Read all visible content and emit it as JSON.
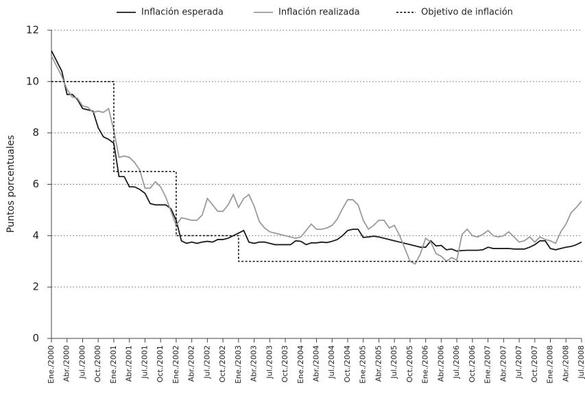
{
  "chart_data": {
    "type": "line",
    "ylabel": "Puntos porcentuales",
    "categories": [
      "Ene./2000",
      null,
      null,
      "Abr./2000",
      null,
      null,
      "Jul./2000",
      null,
      null,
      "Oct./2000",
      null,
      null,
      "Ene./2001",
      null,
      null,
      "Abr./2001",
      null,
      null,
      "Jul./2001",
      null,
      null,
      "Oct./2001",
      null,
      null,
      "Ene./2002",
      null,
      null,
      "Abr./2002",
      null,
      null,
      "Jul./2002",
      null,
      null,
      "Oct./2002",
      null,
      null,
      "Ene./2003",
      null,
      null,
      "Abr./2003",
      null,
      null,
      "Jul./2003",
      null,
      null,
      "Oct./2003",
      null,
      null,
      "Ene./2004",
      null,
      null,
      "Abr./2004",
      null,
      null,
      "Jul./2004",
      null,
      null,
      "Oct./2004",
      null,
      null,
      "Ene./2005",
      null,
      null,
      "Abr./2005",
      null,
      null,
      "Jul./2005",
      null,
      null,
      "Oct./2005",
      null,
      null,
      "Ene./2006",
      null,
      null,
      "Abr./2006",
      null,
      null,
      "Jul./2006",
      null,
      null,
      "Oct./2006",
      null,
      null,
      "Ene./2007",
      null,
      null,
      "Abr./2007",
      null,
      null,
      "Jul./2007",
      null,
      null,
      "Oct./2007",
      null,
      null,
      "Ene./2008",
      null,
      null,
      "Abr./2008",
      null,
      null,
      "Jul./2008"
    ],
    "series": [
      {
        "name": "Inflación esperada",
        "color": "#1a1a1a",
        "dash": false,
        "values": [
          11.2,
          10.8,
          10.4,
          9.5,
          9.5,
          9.3,
          8.95,
          8.9,
          8.85,
          8.2,
          7.85,
          7.75,
          7.6,
          6.3,
          6.3,
          5.9,
          5.9,
          5.8,
          5.65,
          5.25,
          5.2,
          5.2,
          5.2,
          5.05,
          4.6,
          3.8,
          3.7,
          3.75,
          3.7,
          3.75,
          3.78,
          3.75,
          3.85,
          3.85,
          3.9,
          4.0,
          4.1,
          4.2,
          3.75,
          3.7,
          3.75,
          3.75,
          3.7,
          3.65,
          3.65,
          3.65,
          3.65,
          3.8,
          3.78,
          3.65,
          3.72,
          3.72,
          3.75,
          3.73,
          3.78,
          3.85,
          4.0,
          4.2,
          4.25,
          4.25,
          3.93,
          3.95,
          3.98,
          3.95,
          3.9,
          3.85,
          3.8,
          3.75,
          3.7,
          3.65,
          3.6,
          3.55,
          3.55,
          3.8,
          3.6,
          3.62,
          3.45,
          3.48,
          3.4,
          3.42,
          3.43,
          3.43,
          3.43,
          3.45,
          3.55,
          3.5,
          3.5,
          3.5,
          3.5,
          3.48,
          3.48,
          3.48,
          3.55,
          3.65,
          3.8,
          3.8,
          3.5,
          3.45,
          3.5,
          3.55,
          3.58,
          3.65,
          3.75
        ]
      },
      {
        "name": "Inflación realizada",
        "color": "#9a9a9a",
        "dash": false,
        "values": [
          11.0,
          10.6,
          10.2,
          9.7,
          9.4,
          9.35,
          9.05,
          9.0,
          8.8,
          8.85,
          8.8,
          8.95,
          8.1,
          7.05,
          7.1,
          7.05,
          6.85,
          6.55,
          5.85,
          5.85,
          6.1,
          5.9,
          5.5,
          4.95,
          4.4,
          4.7,
          4.65,
          4.6,
          4.6,
          4.8,
          5.45,
          5.2,
          4.95,
          4.95,
          5.2,
          5.6,
          5.1,
          5.45,
          5.6,
          5.15,
          4.55,
          4.3,
          4.15,
          4.1,
          4.05,
          4.0,
          3.95,
          3.9,
          3.95,
          4.2,
          4.45,
          4.25,
          4.25,
          4.3,
          4.4,
          4.65,
          5.05,
          5.4,
          5.4,
          5.2,
          4.6,
          4.25,
          4.4,
          4.6,
          4.6,
          4.3,
          4.4,
          4.0,
          3.5,
          3.0,
          2.9,
          3.3,
          3.9,
          3.75,
          3.3,
          3.2,
          3.0,
          3.15,
          3.05,
          4.05,
          4.25,
          4.0,
          3.95,
          4.05,
          4.2,
          4.0,
          3.95,
          4.0,
          4.15,
          3.95,
          3.75,
          3.8,
          3.95,
          3.75,
          3.95,
          3.85,
          3.8,
          3.7,
          4.15,
          4.45,
          4.9,
          5.1,
          5.35
        ]
      },
      {
        "name": "Objetivo de inflación",
        "color": "#1a1a1a",
        "dash": true,
        "step": true,
        "values": [
          10,
          10,
          10,
          10,
          10,
          10,
          10,
          10,
          10,
          10,
          10,
          10,
          6.5,
          6.5,
          6.5,
          6.5,
          6.5,
          6.5,
          6.5,
          6.5,
          6.5,
          6.5,
          6.5,
          6.5,
          4,
          4,
          4,
          4,
          4,
          4,
          4,
          4,
          4,
          4,
          4,
          4,
          3,
          3,
          3,
          3,
          3,
          3,
          3,
          3,
          3,
          3,
          3,
          3,
          3,
          3,
          3,
          3,
          3,
          3,
          3,
          3,
          3,
          3,
          3,
          3,
          3,
          3,
          3,
          3,
          3,
          3,
          3,
          3,
          3,
          3,
          3,
          3,
          3,
          3,
          3,
          3,
          3,
          3,
          3,
          3,
          3,
          3,
          3,
          3,
          3,
          3,
          3,
          3,
          3,
          3,
          3,
          3,
          3,
          3,
          3,
          3,
          3,
          3,
          3,
          3,
          3,
          3,
          3
        ]
      }
    ],
    "ylim": [
      0,
      12
    ],
    "yticks": [
      0,
      2,
      4,
      6,
      8,
      10,
      12
    ],
    "grid": true,
    "legend": "top"
  }
}
